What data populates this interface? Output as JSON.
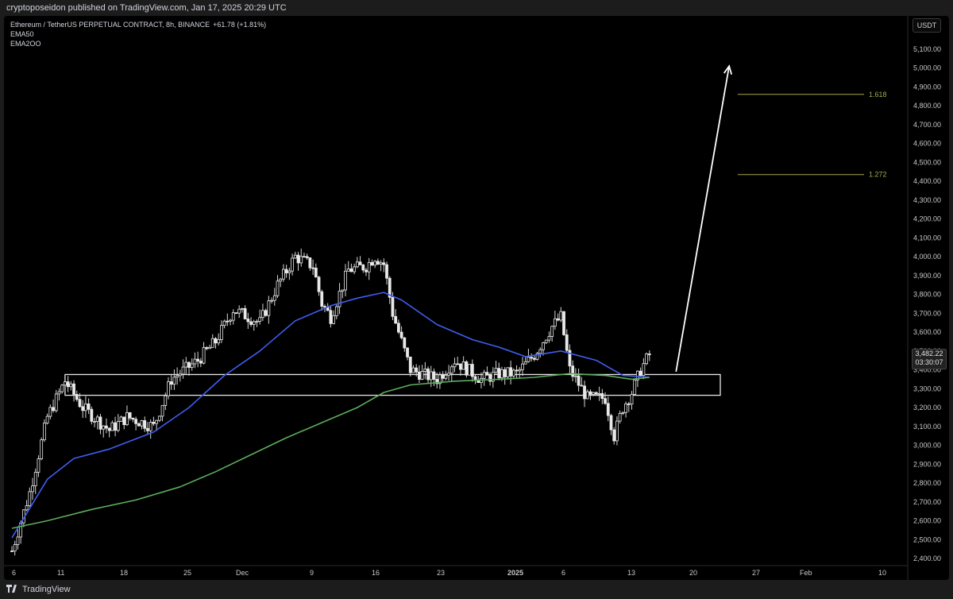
{
  "header": {
    "published": "cryptoposeidon published on TradingView.com, Jan 17, 2025 20:29 UTC"
  },
  "legend": {
    "symbol": "Ethereum / TetherUS PERPETUAL CONTRACT, 8h, BINANCE",
    "change": "+61.78 (+1.81%)",
    "ema50": "EMA50",
    "ema200": "EMA2OO"
  },
  "currency": "USDT",
  "price_tag": {
    "price": "3,482.22",
    "countdown": "03:30:07"
  },
  "footer": {
    "brand": "TradingView"
  },
  "chart_data": {
    "type": "candlestick",
    "title": "Ethereum / TetherUS PERPETUAL CONTRACT, 8h, BINANCE",
    "y_axis": {
      "ylim": [
        2350,
        5200
      ],
      "ticks": [
        "2,400.00",
        "2,500.00",
        "2,600.00",
        "2,700.00",
        "2,800.00",
        "2,900.00",
        "3,000.00",
        "3,100.00",
        "3,200.00",
        "3,300.00",
        "3,400.00",
        "3,500.00",
        "3,600.00",
        "3,700.00",
        "3,800.00",
        "3,900.00",
        "4,000.00",
        "4,100.00",
        "4,200.00",
        "4,300.00",
        "4,400.00",
        "4,500.00",
        "4,600.00",
        "4,700.00",
        "4,800.00",
        "4,900.00",
        "5,000.00",
        "5,100.00"
      ]
    },
    "x_axis": {
      "labels": [
        "6",
        "11",
        "18",
        "25",
        "Dec",
        "9",
        "16",
        "23",
        "2025",
        "6",
        "13",
        "20",
        "27",
        "Feb",
        "10"
      ],
      "bold": [
        "2025"
      ]
    },
    "price_path": [
      [
        "2024-11-06",
        2440
      ],
      [
        "2024-11-08",
        2750
      ],
      [
        "2024-11-10",
        3150
      ],
      [
        "2024-11-12",
        3340
      ],
      [
        "2024-11-14",
        3200
      ],
      [
        "2024-11-17",
        3080
      ],
      [
        "2024-11-19",
        3150
      ],
      [
        "2024-11-22",
        3100
      ],
      [
        "2024-11-24",
        3350
      ],
      [
        "2024-11-27",
        3450
      ],
      [
        "2024-11-29",
        3550
      ],
      [
        "2024-12-01",
        3720
      ],
      [
        "2024-12-04",
        3650
      ],
      [
        "2024-12-06",
        3850
      ],
      [
        "2024-12-08",
        4000
      ],
      [
        "2024-12-10",
        3950
      ],
      [
        "2024-12-11",
        3750
      ],
      [
        "2024-12-12",
        3680
      ],
      [
        "2024-12-14",
        3930
      ],
      [
        "2024-12-16",
        3950
      ],
      [
        "2024-12-17",
        4000
      ],
      [
        "2024-12-18",
        3960
      ],
      [
        "2024-12-19",
        3700
      ],
      [
        "2024-12-21",
        3400
      ],
      [
        "2024-12-24",
        3350
      ],
      [
        "2024-12-26",
        3450
      ],
      [
        "2024-12-29",
        3350
      ],
      [
        "2024-12-31",
        3380
      ],
      [
        "2025-01-02",
        3380
      ],
      [
        "2025-01-04",
        3480
      ],
      [
        "2025-01-06",
        3630
      ],
      [
        "2025-01-07",
        3680
      ],
      [
        "2025-01-08",
        3400
      ],
      [
        "2025-01-10",
        3250
      ],
      [
        "2025-01-12",
        3250
      ],
      [
        "2025-01-13",
        3050
      ],
      [
        "2025-01-14",
        3200
      ],
      [
        "2025-01-15",
        3280
      ],
      [
        "2025-01-16",
        3400
      ],
      [
        "2025-01-17",
        3482
      ]
    ],
    "series": [
      {
        "name": "EMA50",
        "color": "#3f5ef0",
        "points": [
          [
            "2024-11-06",
            2510
          ],
          [
            "2024-11-10",
            2820
          ],
          [
            "2024-11-13",
            2930
          ],
          [
            "2024-11-17",
            2980
          ],
          [
            "2024-11-22",
            3070
          ],
          [
            "2024-11-26",
            3200
          ],
          [
            "2024-11-30",
            3370
          ],
          [
            "2024-12-04",
            3500
          ],
          [
            "2024-12-08",
            3660
          ],
          [
            "2024-12-12",
            3740
          ],
          [
            "2024-12-15",
            3780
          ],
          [
            "2024-12-18",
            3810
          ],
          [
            "2024-12-20",
            3770
          ],
          [
            "2024-12-24",
            3640
          ],
          [
            "2024-12-28",
            3560
          ],
          [
            "2024-12-31",
            3520
          ],
          [
            "2025-01-03",
            3470
          ],
          [
            "2025-01-07",
            3500
          ],
          [
            "2025-01-11",
            3450
          ],
          [
            "2025-01-14",
            3370
          ],
          [
            "2025-01-17",
            3360
          ]
        ]
      },
      {
        "name": "EMA2OO",
        "color": "#5cad5c",
        "points": [
          [
            "2024-11-06",
            2560
          ],
          [
            "2024-11-10",
            2600
          ],
          [
            "2024-11-15",
            2660
          ],
          [
            "2024-11-20",
            2710
          ],
          [
            "2024-11-25",
            2780
          ],
          [
            "2024-11-29",
            2860
          ],
          [
            "2024-12-03",
            2950
          ],
          [
            "2024-12-07",
            3040
          ],
          [
            "2024-12-11",
            3120
          ],
          [
            "2024-12-15",
            3200
          ],
          [
            "2024-12-18",
            3280
          ],
          [
            "2024-12-21",
            3320
          ],
          [
            "2024-12-26",
            3340
          ],
          [
            "2024-12-31",
            3350
          ],
          [
            "2025-01-04",
            3360
          ],
          [
            "2025-01-08",
            3380
          ],
          [
            "2025-01-12",
            3370
          ],
          [
            "2025-01-15",
            3350
          ],
          [
            "2025-01-17",
            3360
          ]
        ]
      }
    ],
    "annotations": [
      {
        "type": "range_box",
        "x_start": "2024-11-12",
        "x_end": "2025-01-25",
        "y_low": 3265,
        "y_high": 3375
      },
      {
        "type": "fib_line",
        "label": "1.618",
        "y": 4860,
        "color": "#a8a84a"
      },
      {
        "type": "fib_line",
        "label": "1.272",
        "y": 4435,
        "color": "#a8a84a"
      },
      {
        "type": "arrow",
        "from": [
          "2025-01-20",
          3390
        ],
        "to": [
          "2025-01-26",
          5010
        ],
        "color": "#ffffff"
      }
    ]
  }
}
